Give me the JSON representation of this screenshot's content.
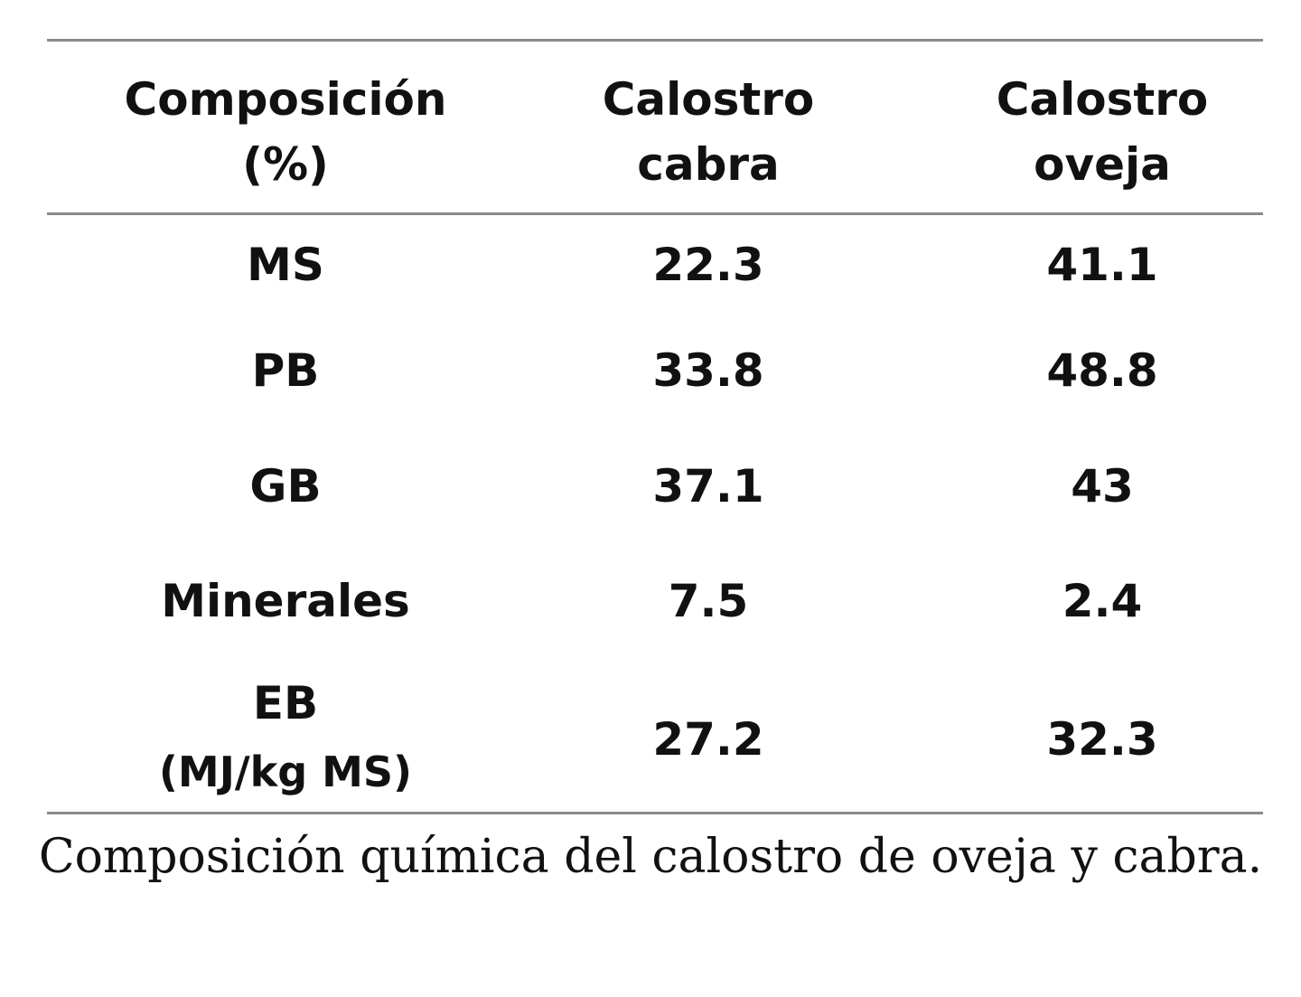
{
  "table": {
    "header": [
      [
        "Composición",
        "(%)"
      ],
      [
        "Calostro",
        "cabra"
      ],
      [
        "Calostro",
        "oveja"
      ]
    ],
    "rows": [
      [
        [
          "MS"
        ],
        22.3,
        41.1
      ],
      [
        [
          "PB"
        ],
        33.8,
        48.8
      ],
      [
        [
          "GB"
        ],
        37.1,
        43
      ],
      [
        [
          "Minerales"
        ],
        7.5,
        2.4
      ],
      [
        [
          "EB",
          "(MJ/kg MS)"
        ],
        27.2,
        32.3
      ]
    ]
  },
  "caption": "Composición química del calostro de oveja y cabra."
}
